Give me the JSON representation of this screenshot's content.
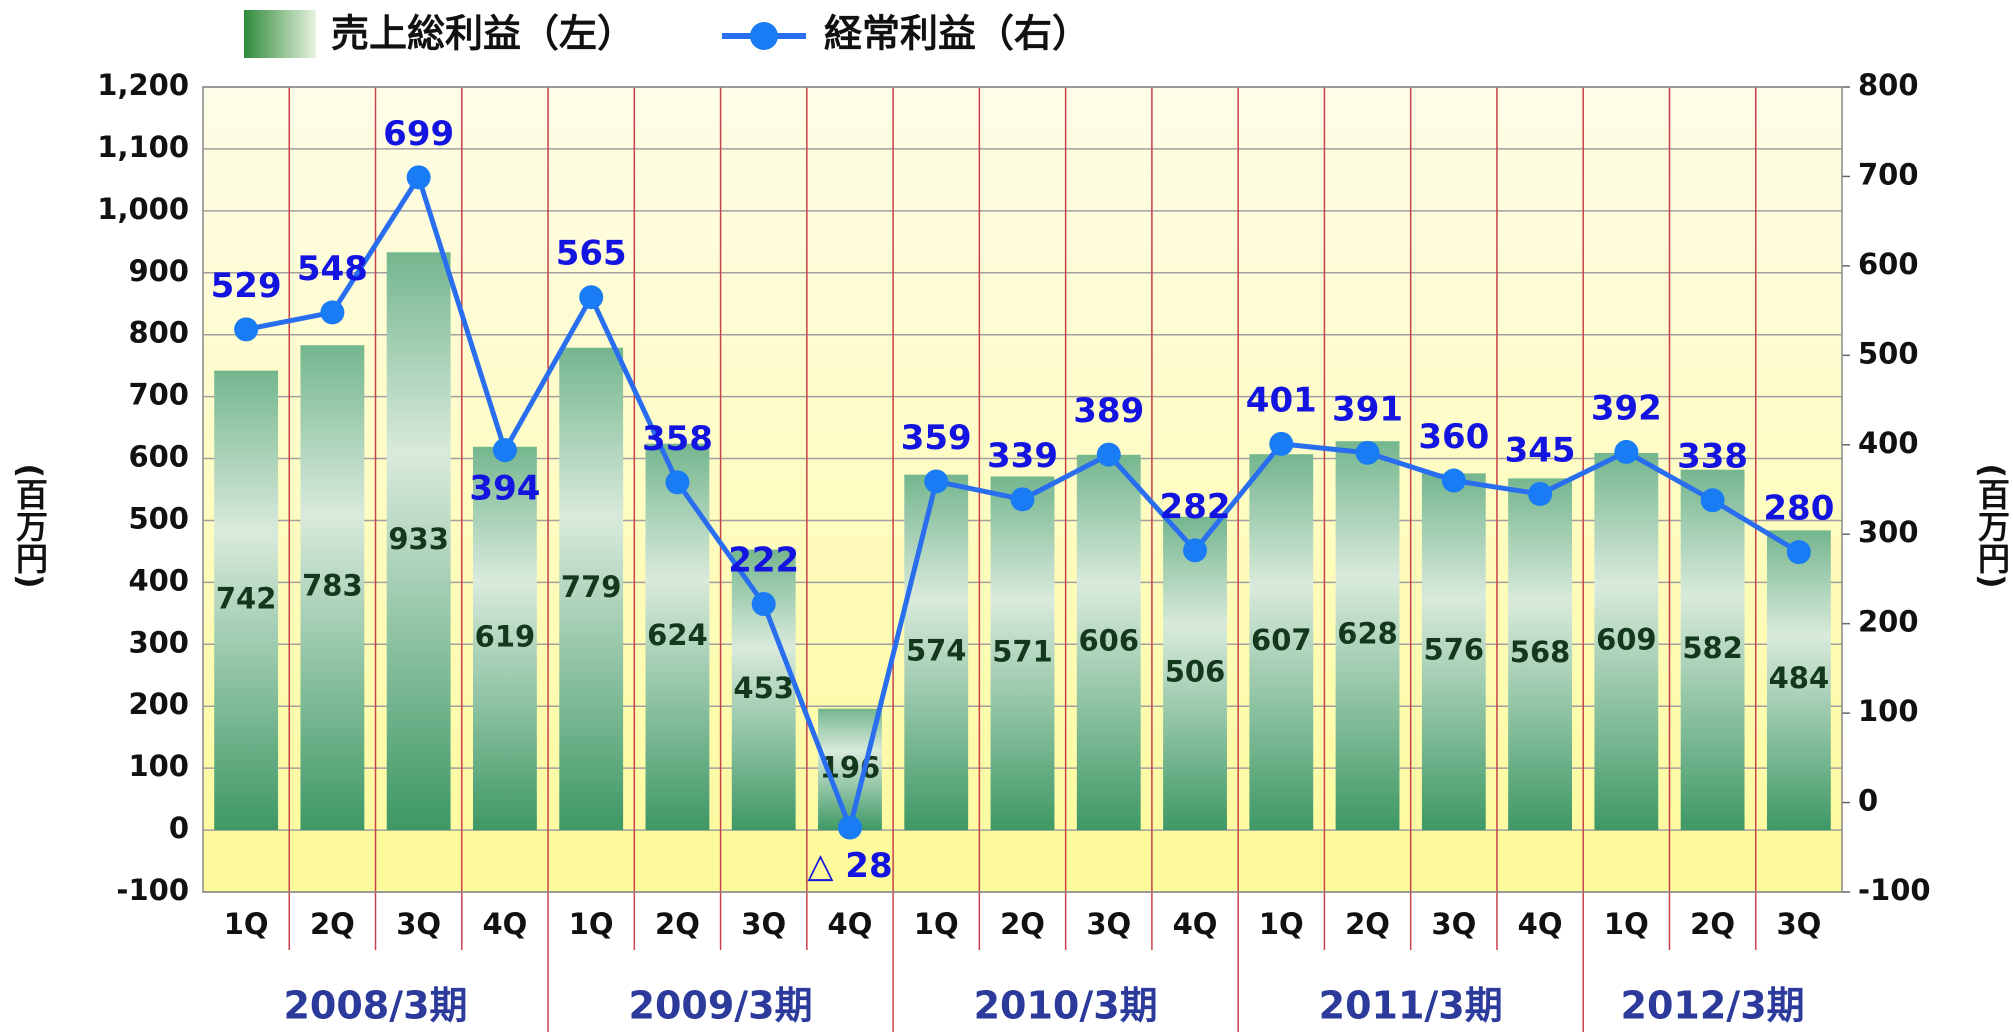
{
  "chart_data": {
    "type": "bar_line",
    "categories": [
      "1Q",
      "2Q",
      "3Q",
      "4Q",
      "1Q",
      "2Q",
      "3Q",
      "4Q",
      "1Q",
      "2Q",
      "3Q",
      "4Q",
      "1Q",
      "2Q",
      "3Q",
      "4Q",
      "1Q",
      "2Q",
      "3Q"
    ],
    "periods": [
      "2008/3期",
      "2009/3期",
      "2010/3期",
      "2011/3期",
      "2012/3期"
    ],
    "series": [
      {
        "name": "売上総利益（左）",
        "color": "#4a9f70",
        "type": "bar",
        "values": [
          742,
          783,
          933,
          619,
          779,
          624,
          453,
          196,
          574,
          571,
          606,
          506,
          607,
          628,
          576,
          568,
          609,
          582,
          484
        ]
      },
      {
        "name": "経常利益（右）",
        "color": "#2a6ef0",
        "type": "line",
        "axis": "y2",
        "values": [
          529,
          548,
          699,
          394,
          565,
          358,
          222,
          -28,
          359,
          339,
          389,
          282,
          401,
          391,
          360,
          345,
          392,
          338,
          280
        ],
        "value_labels": [
          "529",
          "548",
          "699",
          "394",
          "565",
          "358",
          "222",
          "△ 28",
          "359",
          "339",
          "389",
          "282",
          "401",
          "391",
          "360",
          "345",
          "392",
          "338",
          "280"
        ]
      }
    ],
    "y_label": "(百万円)",
    "y2_label": "(百万円)",
    "ylim": [
      -100,
      1200
    ],
    "yticks": [
      -100,
      0,
      100,
      200,
      300,
      400,
      500,
      600,
      700,
      800,
      900,
      {
        "value": 1000,
        "label": "1,000"
      },
      {
        "value": 1100,
        "label": "1,100"
      },
      {
        "value": 1200,
        "label": "1,200"
      }
    ],
    "y2lim": [
      -100,
      800
    ],
    "y2ticks": [
      -100,
      0,
      100,
      200,
      300,
      400,
      500,
      600,
      700,
      800
    ],
    "grid": true
  }
}
